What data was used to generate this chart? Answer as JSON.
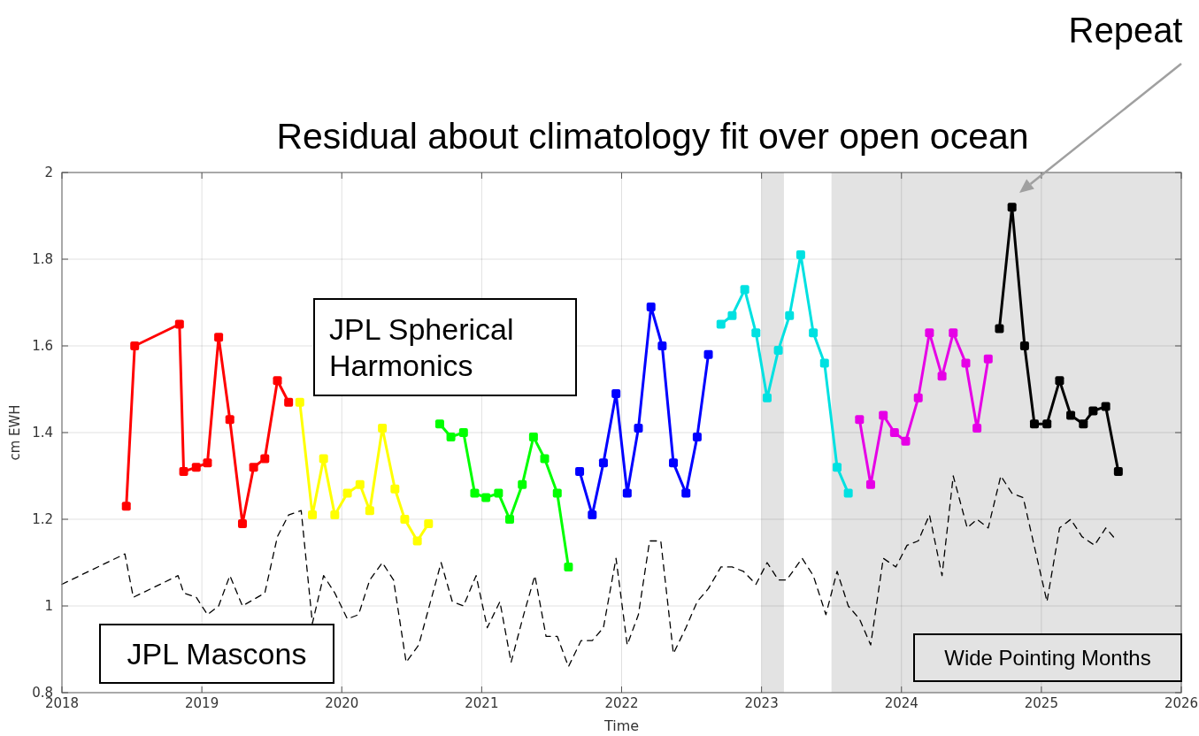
{
  "chart_data": {
    "type": "line",
    "title": "Residual about climatology fit over open ocean",
    "xlabel": "Time",
    "ylabel": "cm EWH",
    "xlim": [
      2018,
      2026
    ],
    "xticks": [
      2018,
      2019,
      2020,
      2021,
      2022,
      2023,
      2024,
      2025,
      2026
    ],
    "ylim": [
      0.8,
      2
    ],
    "yticks": [
      0.8,
      1,
      1.2,
      1.4,
      1.6,
      1.8,
      2
    ],
    "grid": true,
    "marker": "square",
    "line_style": "solid",
    "bands": [
      {
        "axis": "x",
        "from": 2023.0,
        "to": 2023.16,
        "color": "#e3e3e3"
      },
      {
        "axis": "x",
        "from": 2023.5,
        "to": 2026,
        "color": "#e3e3e3"
      }
    ],
    "annotations": [
      "JPL Spherical Harmonics",
      "JPL Mascons",
      "Wide Pointing Months",
      "Repeat"
    ],
    "series": [
      {
        "color": "#000000",
        "marker": "none",
        "line_style": "dashed",
        "x": [
          2018.0,
          2018.45,
          2018.51,
          2018.83,
          2018.87,
          2018.96,
          2019.04,
          2019.12,
          2019.2,
          2019.29,
          2019.45,
          2019.54,
          2019.62,
          2019.71,
          2019.79,
          2019.87,
          2019.95,
          2020.04,
          2020.12,
          2020.2,
          2020.29,
          2020.37,
          2020.46,
          2020.55,
          2020.71,
          2020.79,
          2020.87,
          2020.96,
          2021.04,
          2021.13,
          2021.21,
          2021.3,
          2021.38,
          2021.46,
          2021.54,
          2021.62,
          2021.71,
          2021.79,
          2021.87,
          2021.96,
          2022.04,
          2022.12,
          2022.2,
          2022.28,
          2022.37,
          2022.46,
          2022.54,
          2022.62,
          2022.71,
          2022.79,
          2022.87,
          2022.96,
          2023.04,
          2023.12,
          2023.18,
          2023.29,
          2023.37,
          2023.46,
          2023.54,
          2023.62,
          2023.7,
          2023.78,
          2023.87,
          2023.96,
          2024.04,
          2024.12,
          2024.2,
          2024.29,
          2024.37,
          2024.47,
          2024.54,
          2024.62,
          2024.71,
          2024.79,
          2024.87,
          2025.04,
          2025.13,
          2025.21,
          2025.29,
          2025.38,
          2025.46,
          2025.54
        ],
        "values": [
          1.05,
          1.12,
          1.02,
          1.07,
          1.03,
          1.02,
          0.98,
          1.0,
          1.07,
          1.0,
          1.03,
          1.16,
          1.21,
          1.22,
          0.96,
          1.07,
          1.03,
          0.97,
          0.98,
          1.06,
          1.1,
          1.06,
          0.87,
          0.91,
          1.1,
          1.01,
          1.0,
          1.07,
          0.95,
          1.01,
          0.87,
          0.98,
          1.07,
          0.93,
          0.93,
          0.86,
          0.92,
          0.92,
          0.95,
          1.11,
          0.91,
          0.98,
          1.15,
          1.15,
          0.89,
          0.95,
          1.01,
          1.04,
          1.09,
          1.09,
          1.08,
          1.05,
          1.1,
          1.06,
          1.06,
          1.11,
          1.07,
          0.98,
          1.08,
          1.0,
          0.97,
          0.91,
          1.11,
          1.09,
          1.14,
          1.15,
          1.21,
          1.07,
          1.3,
          1.18,
          1.2,
          1.18,
          1.3,
          1.26,
          1.25,
          1.01,
          1.18,
          1.2,
          1.16,
          1.14,
          1.18,
          1.15
        ]
      },
      {
        "color": "#ff0000",
        "x": [
          2018.46,
          2018.52,
          2018.84,
          2018.87,
          2018.96,
          2019.04,
          2019.12,
          2019.2,
          2019.29,
          2019.37,
          2019.45,
          2019.54,
          2019.62
        ],
        "values": [
          1.23,
          1.6,
          1.65,
          1.31,
          1.32,
          1.33,
          1.62,
          1.43,
          1.19,
          1.32,
          1.34,
          1.52,
          1.47
        ]
      },
      {
        "color": "#ffff00",
        "x": [
          2019.7,
          2019.79,
          2019.87,
          2019.95,
          2020.04,
          2020.13,
          2020.2,
          2020.29,
          2020.38,
          2020.45,
          2020.54,
          2020.62
        ],
        "values": [
          1.47,
          1.21,
          1.34,
          1.21,
          1.26,
          1.28,
          1.22,
          1.41,
          1.27,
          1.2,
          1.15,
          1.19
        ]
      },
      {
        "color": "#00ff00",
        "x": [
          2020.7,
          2020.78,
          2020.87,
          2020.95,
          2021.03,
          2021.12,
          2021.2,
          2021.29,
          2021.37,
          2021.45,
          2021.54,
          2021.62
        ],
        "values": [
          1.42,
          1.39,
          1.4,
          1.26,
          1.25,
          1.26,
          1.2,
          1.28,
          1.39,
          1.34,
          1.26,
          1.09
        ]
      },
      {
        "color": "#0000ff",
        "x": [
          2021.7,
          2021.79,
          2021.87,
          2021.96,
          2022.04,
          2022.12,
          2022.21,
          2022.29,
          2022.37,
          2022.46,
          2022.54,
          2022.62
        ],
        "values": [
          1.31,
          1.21,
          1.33,
          1.49,
          1.26,
          1.41,
          1.69,
          1.6,
          1.33,
          1.26,
          1.39,
          1.58
        ]
      },
      {
        "color": "#00e1e1",
        "x": [
          2022.71,
          2022.79,
          2022.88,
          2022.96,
          2023.04,
          2023.12,
          2023.2,
          2023.28,
          2023.37,
          2023.45,
          2023.54,
          2023.62
        ],
        "values": [
          1.65,
          1.67,
          1.73,
          1.63,
          1.48,
          1.59,
          1.67,
          1.81,
          1.63,
          1.56,
          1.32,
          1.26
        ]
      },
      {
        "color": "#e600e6",
        "x": [
          2023.7,
          2023.78,
          2023.87,
          2023.95,
          2024.03,
          2024.12,
          2024.2,
          2024.29,
          2024.37,
          2024.46,
          2024.54,
          2024.62
        ],
        "values": [
          1.43,
          1.28,
          1.44,
          1.4,
          1.38,
          1.48,
          1.63,
          1.53,
          1.63,
          1.56,
          1.41,
          1.57
        ]
      },
      {
        "color": "#000000",
        "x": [
          2024.7,
          2024.79,
          2024.88,
          2024.95,
          2025.04,
          2025.13,
          2025.21,
          2025.3,
          2025.37,
          2025.46,
          2025.55
        ],
        "values": [
          1.64,
          1.92,
          1.6,
          1.42,
          1.42,
          1.52,
          1.44,
          1.42,
          1.45,
          1.46,
          1.31
        ]
      }
    ]
  }
}
